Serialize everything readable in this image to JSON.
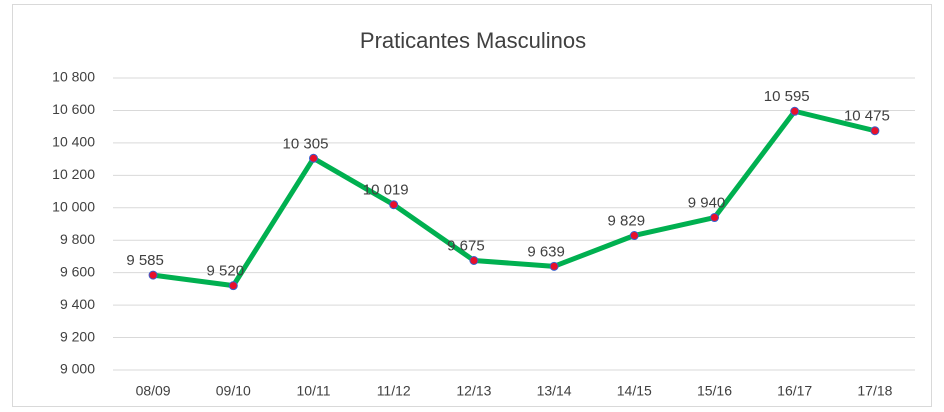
{
  "chart_data": {
    "type": "line",
    "title": "Praticantes Masculinos",
    "categories": [
      "08/09",
      "09/10",
      "10/11",
      "11/12",
      "12/13",
      "13/14",
      "14/15",
      "15/16",
      "16/17",
      "17/18"
    ],
    "series": [
      {
        "name": "Praticantes Masculinos",
        "color": "#00b050",
        "marker_color": "#e8102a",
        "marker_edge": "#3a5fcd",
        "values": [
          9585,
          9520,
          10305,
          10019,
          9675,
          9639,
          9829,
          9940,
          10595,
          10475
        ],
        "value_labels": [
          "9 585",
          "9 520",
          "10 305",
          "10 019",
          "9 675",
          "9 639",
          "9 829",
          "9 940",
          "10 595",
          "10 475"
        ]
      }
    ],
    "ylim": [
      9000,
      10800
    ],
    "yticks": [
      {
        "value": 9000,
        "label": "9 000"
      },
      {
        "value": 9200,
        "label": "9 200"
      },
      {
        "value": 9400,
        "label": "9 400"
      },
      {
        "value": 9600,
        "label": "9 600"
      },
      {
        "value": 9800,
        "label": "9 800"
      },
      {
        "value": 10000,
        "label": "10 000"
      },
      {
        "value": 10200,
        "label": "10 200"
      },
      {
        "value": 10400,
        "label": "10 400"
      },
      {
        "value": 10600,
        "label": "10 600"
      },
      {
        "value": 10800,
        "label": "10 800"
      }
    ],
    "grid": true
  }
}
